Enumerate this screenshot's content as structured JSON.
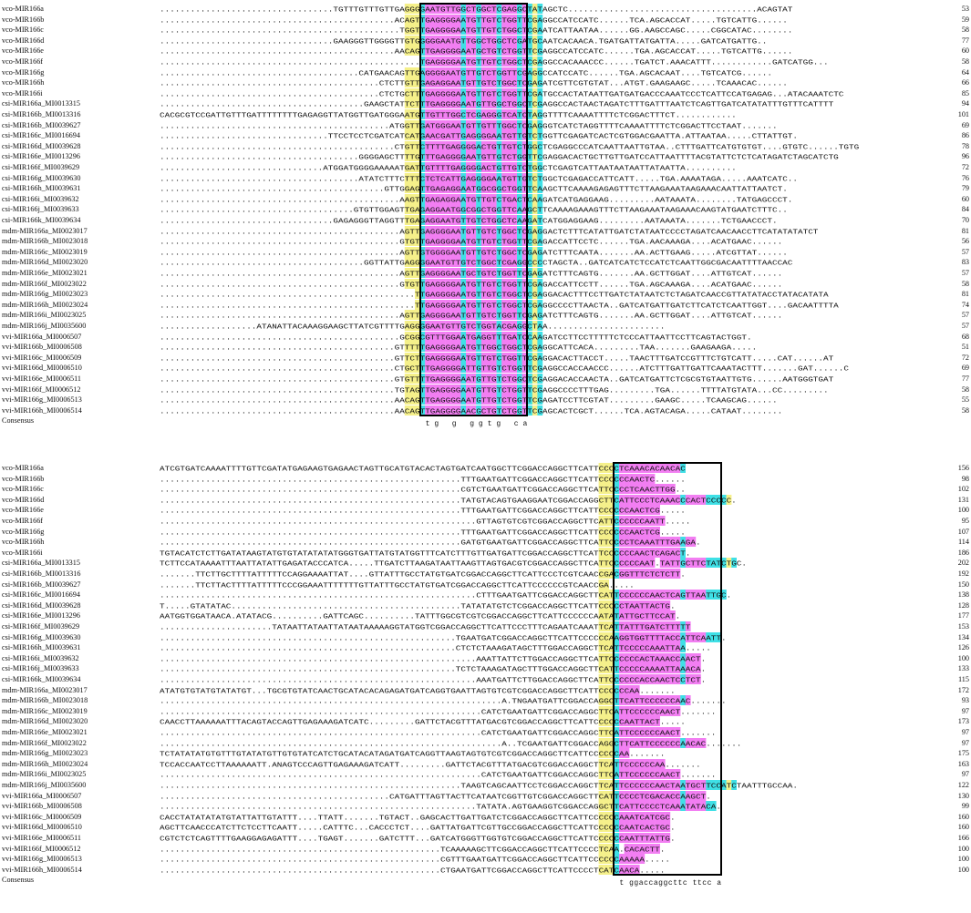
{
  "block1": {
    "rows": [
      {
        "name": "vco-MIR166a",
        "seq": "..................................TGTTTGTTTGTTGAGGGGAATGTTGGCTGGCTCGAGGCTATAGCTC.....................................ACAGTAT",
        "num": "53"
      },
      {
        "name": "vco-MIR166b",
        "seq": "..............................................ACAGTTGAGGGGAATGTTGTCTGGTTCGAGGCCATCCATC......TCA.AGCACCAT.....TGTCATTG......",
        "num": "59"
      },
      {
        "name": "vco-MIR166c",
        "seq": "...............................................TGGTTGAGGGGAATGTTGTCTGGCTCGAATCATTAATAA......GG.AAGCCAGC.....CGGCATAC........",
        "num": "58"
      },
      {
        "name": "vco-MIR166d",
        "seq": "..................................GAAGGGTTGGGGTTGTGGGGGAATGTTGGCTGGCTCGATGCAATCACAACA.TGATGATTATGATTA.....GATCATGATTG..",
        "num": "77"
      },
      {
        "name": "vco-MIR166e",
        "seq": "..............................................AACAGTTGAGGGGAATGCTGTCTGGTTCGAGGCCATCCATC......TGA.AGCACCAT.....TGTCATTG......",
        "num": "60"
      },
      {
        "name": "vco-MIR166f",
        "seq": "...................................................TGAGGGGAATGTTGTCTGGCTCGAGGCCACAAACCC......TGATCT.AAACATTT............GATCATGG...",
        "num": "58"
      },
      {
        "name": "vco-MIR166g",
        "seq": ".......................................CATGAACAGTTGAGGGGAATGTTGTCTGGTTCGAGGCCATCCATC......TGA.AGCACAAT....TGTCATCG......",
        "num": "64"
      },
      {
        "name": "vco-MIR166h",
        "seq": "...........................................CTCTTGTTGAGAGGAATGTTGTCTGGCTCGAGATCGTTCGTGTAT...ATGT.GAAGAAGC.....TCAAACAC......",
        "num": "66"
      },
      {
        "name": "vco-MIR166i",
        "seq": "...........................................CTCTGCTTTGAGGGGAATGTTGTCTGGTTCGATGCCACTATAATTGATGATGACCCAAATCCCTCATTCCATGAGAG...ATACAAATCTC",
        "num": "85"
      },
      {
        "name": "csi-MIR166a_MI0013315",
        "seq": "........................................GAAGCTATTCTTTGAGGGGAATGTTGGCTGGCTCGAGGCCACTAACTAGATCTTTGATTTAATCTCAGTTGATCATATATTTGTTTCATTTT",
        "num": "94"
      },
      {
        "name": "csi-MIR166b_MI0013316",
        "seq": "CACGCGTCCGATTGTTTGATTTTTTTTGAGAGGTTATGGTTGATGGGAATGTTGTTTGGCTCGAGGGTCATCTAGGTTTTCAAAATTTTCTCGGACTTTCT............",
        "num": "101"
      },
      {
        "name": "csi-MIR166b_MI0039627",
        "seq": ".............................................ATGGTTGATGGGAATGTTGTTTGGCTCGAGGGTCATCTAGGTTTTCAAAATTTTCTCGGACTTCCTAAT.......",
        "num": "69"
      },
      {
        "name": "csi-MIR166c_MI0016694",
        "seq": ".................................TTCCTCCTCGATCATCATGAACGATTGAGGGGAATGTTGTCTGGTTCGAGATCACTCGTGGACGAATTA.ATTAATAA.....CTTATTGT.",
        "num": "86"
      },
      {
        "name": "csi-MIR166d_MI0039628",
        "seq": "..............................................CTGTTCTTTTGAGGGGACTGTTGTCTGGCTCGAGGCCCATCAATTAATTGTAA..CTTTGATTCATGTGTGT....GTGTC......TGTG",
        "num": "78"
      },
      {
        "name": "csi-MIR166e_MI0013296",
        "seq": ".......................................GGGGAGCTTTTGTTTGAGGGGAATGTTGTCTGGTTCGAGGACACTGCTTGTTGATCCATTAATTTTACGTATTCTCTCATAGATCTAGCATCTG",
        "num": "96"
      },
      {
        "name": "csi-MIR166f_MI0039629",
        "seq": "................................ATGGATGGGGAAAAATGATTGTTTTGAGGGGACTGTTGTCTGGCTCGAGTCATTAATAATAATTATAATTA..........",
        "num": "72"
      },
      {
        "name": "csi-MIR166g_MI0039630",
        "seq": ".......................................ATATCTTTCTTTCTCTCATTGAGGGGAATGTTGTCTGGCTCGAGACCATTCATT.....TGA.AAAATAGA.....AAATCATC..",
        "num": "76"
      },
      {
        "name": "csi-MIR166h_MI0039631",
        "seq": "............................................GTTGGAGTTGAGAGGAATGGCGGCTGGTTCAAGCTTCAAAAGAGAGTTTCTTAAGAAATAAGAAACAATTATTAATCT.",
        "num": "79"
      },
      {
        "name": "csi-MIR166i_MI0039632",
        "seq": "...............................................AAGTTGAGAGGAATGTTGTCTGACTCAAGATCATGAGGAAG.........AATAAATA........TATGAGCCCT.",
        "num": "60"
      },
      {
        "name": "csi-MIR166j_MI0039633",
        "seq": "......................................GTGTTGGAGTTGAGAGGAATGGCGGCTGGTTCAAGCTTCAAAAGAAAGTTTCTTAAGAAATAAGAAACAAGTATGAATCTTTC..",
        "num": "84"
      },
      {
        "name": "csi-MIR166k_MI0039634",
        "seq": "..................................GAGAGGGTTAGGTTTGAGAGGAATGTTGTCTGGCTCAAGATCATGGAGGAAG.........AATAAATA.......TCTGAACCCT.",
        "num": "70"
      },
      {
        "name": "mdm-MIR166a_MI0023017",
        "seq": "...............................................AGTTGAGGGGAATGTTGTCTGGCTCGAGGACTCTTTCATATTGATCTATAATCCCCTAGATCAACAACCTTCATATATATCT",
        "num": "81"
      },
      {
        "name": "mdm-MIR166b_MI0023018",
        "seq": "...............................................GTGTTGAGGGGAATGTTGTCTGGTTCGAGACCATTCCTC......TGA.AACAAAGA....ACATGAAC......",
        "num": "56"
      },
      {
        "name": "mdm-MIR166c_MI0023019",
        "seq": "...............................................AGTTGTGGGGAATGTTGTCTGGCTCGAGATCTTTCAATA.......AA.ACTTGAAG.....ATCGTTAT......",
        "num": "57"
      },
      {
        "name": "mdm-MIR166d_MI0023020",
        "seq": "........................................GGTTATTGAGGGGAATGTTGTCTGGCTCGAGGCCCCTAGCTA..GATCATCATCTCCATCTCAATTGGCGACAATTTTAACCAC",
        "num": "83"
      },
      {
        "name": "mdm-MIR166e_MI0023021",
        "seq": "...............................................AGTTGAGGGGAATGCTGTCTGGTTCGAGATCTTTCAGTG.......AA.GCTTGGAT....ATTGTCAT......",
        "num": "57"
      },
      {
        "name": "mdm-MIR166f_MI0023022",
        "seq": "...............................................GTGTTGAGGGGAATGTTGTCTGGTTCGAGACCATTCCTT......TGA.AGCAAAGA....ACATGAAC......",
        "num": "58"
      },
      {
        "name": "mdm-MIR166g_MI0023023",
        "seq": "..................................................TTGAGGGGAATGTTGTCTGGCTCGAGGACACTTTCCTTGATCTATAATCTCTAGATCAACCGTTATATACCTATACATATA",
        "num": "81"
      },
      {
        "name": "mdm-MIR166h_MI0023024",
        "seq": "..................................................TTGAGGGGAATGTTGTCTGGCTCGAGGCCCCTTAACTA..GATCATGATTGATCTTCATCTCAATTGGT....GACAATTTTA",
        "num": "74"
      },
      {
        "name": "mdm-MIR166i_MI0023025",
        "seq": "...............................................AGTTGAGGGGAATGTTGTCTGGTTCGAGATCTTTCAGTG.......AA.GCTTGGAT....ATTGTCAT......",
        "num": "57"
      },
      {
        "name": "mdm-MIR166j_MI0035600",
        "seq": "...................ATANATTACAAAGGAAGCTTATCGTTTTGAGGGGAATGTTGTCTGGTACGAGGCTAA.......................",
        "num": "57"
      },
      {
        "name": "vvi-MIR166a_MI0006507",
        "seq": "...............................................GCGGCGTTTGGAATGAGGTTTGATCCAAGATCCTTCCTTTTTCTCCCATTAATTCCTTCAGTACTGGT.",
        "num": "68"
      },
      {
        "name": "vvi-MIR166b_MI0006508",
        "seq": "..............................................GTTTTTGAGGGGAATGTTGGCTGGCTCGAGGCATTCACA.........TAA.......GAAGAAGA.....",
        "num": "51"
      },
      {
        "name": "vvi-MIR166c_MI0006509",
        "seq": "..............................................GTTCTTGAGGGGAATGTTGTCTGGTTCGAGGACACTTACCT.....TAACTTTGATCCGTTTCTGTCATT.....CAT......AT",
        "num": "72"
      },
      {
        "name": "vvi-MIR166d_MI0006510",
        "seq": "..............................................CTGCTTTGAGGGGATTGTTGTCTGGTTCGAGGCCACCAACCC......ATCTTTGATTGATTCAAATACTTT.......GAT......C",
        "num": "69"
      },
      {
        "name": "vvi-MIR166e_MI0006511",
        "seq": "..............................................GTGTTTTGAGGGGAATGTTGTCTGGCTCGAGGACACCAACTA..GATCATGATTCTCGCGTGTAATTGTG......AATGGGTGAT",
        "num": "77"
      },
      {
        "name": "vvi-MIR166f_MI0006512",
        "seq": "..............................................TGTAGTTGAGGGGAATGTTGTCTGGTTCGAGGCCCCTTTGAG.........TGA......TTTTATGTATA...CC.........",
        "num": "58"
      },
      {
        "name": "vvi-MIR166g_MI0006513",
        "seq": "..............................................AACAGTTGAGGGGAATGTTGTCTGGTTCGAGATCCTTCGTAT.........GAAGC.....TCAAGCAG......",
        "num": "55"
      },
      {
        "name": "vvi-MIR166h_MI0006514",
        "seq": "..............................................AACAGTTGAGGGGAACGCTGTCTGGTTCGAGCACTCGCT......TCA.AGTACAGA.....CATAAT........",
        "num": "58"
      }
    ],
    "consensus_label": "Consensus",
    "consensus": "tg  g   ggtg  ca"
  },
  "block2": {
    "rows": [
      {
        "name": "vco-MIR166a",
        "seq": "ATCGTGATCAAAATTTTGTTCGATATGAGAAGTGAGAACTAGTTGCATGTACACTAGTGATCAATGGCTTCGGACCAGGCTTCATTCCCCTCAAACACAACAC",
        "num": "156"
      },
      {
        "name": "vco-MIR166b",
        "seq": "...........................................................TTTGAATGATTCGGACCAGGCTTCATTCCCCCCAACTC......",
        "num": "98"
      },
      {
        "name": "vco-MIR166c",
        "seq": "...........................................................CGTCTGAATGATTCGGACCAGGCTTCATTCCCCTCAACTTGG..",
        "num": "102"
      },
      {
        "name": "vco-MIR166d",
        "seq": "...........................................................TATGTACAGTGAAGGAATCGGACCAGGCTTCATTCCCTCAAACCCACTCCCCC.",
        "num": "131"
      },
      {
        "name": "vco-MIR166e",
        "seq": "...........................................................TTTGAATGATTCGGACCAGGCTTCATTCCCCCCAACTCG.....",
        "num": "100"
      },
      {
        "name": "vco-MIR166f",
        "seq": "..............................................................GTTAGTGTCGTCGGACCAGGCTTCATTCCCCCCAATT.....",
        "num": "95"
      },
      {
        "name": "vco-MIR166g",
        "seq": "...........................................................TTTGAATGATTCGGACCAGGCTTCATTCCCCCCAACTCG.....",
        "num": "107"
      },
      {
        "name": "vco-MIR166h",
        "seq": "...........................................................GATGTGAATGATTCGGACCAGGCTTCATTCCCCTCAAATTTGAAGA.",
        "num": "114"
      },
      {
        "name": "vco-MIR166i",
        "seq": "TGTACATCTCTTGATATAAGTATGTGTATATATATGGGTGATTATGTATGGTTTCATCTTTGTTGATGATTCGGACCAGGCTTCATTCCCCCCAACTCAGACT.",
        "num": "186"
      },
      {
        "name": "csi-MIR166a_MI0013315",
        "seq": "TCTTCCATAAAATTTAATTATATTGAGATACCCATCA.....TTGATCTTAAGATAATTAAGTTAGTGACGTCGGACCAGGCTTCATTCCCCCCAAT.TATTGCTTCTATCTGC.",
        "num": "202"
      },
      {
        "name": "csi-MIR166b_MI0013316",
        "seq": ".......TTCTTGCTTTTATTTTTCCAGGAAAATTAT....GTTATTTGCCTATGTGATCGGACCAGGCTTCATTCCCTCGTCAACCGACGGTTTCTCTCTT.",
        "num": "192"
      },
      {
        "name": "csi-MIR166b_MI0039627",
        "seq": ".......TTCTTACTTTTATTTTTCCCGGAAATTTTTTTGTTATTTGCCTATGTGATCGGACCAGGCTTCATTCCCCCCGTCAACCGA.....",
        "num": "150"
      },
      {
        "name": "csi-MIR166c_MI0016694",
        "seq": "..............................................................CTTTGAATGATTCGGACCAGGCTTCATTCCCCCCAACTCAGTTAATTGC.",
        "num": "138"
      },
      {
        "name": "csi-MIR166d_MI0039628",
        "seq": "T.....GTATATAC.............................................TATATATGTCTCGGACCAGGCTTCATTCCCCCTAATTACTG.",
        "num": "128"
      },
      {
        "name": "csi-MIR166e_MI0013296",
        "seq": "AATGGTGGATAACA.ATATACG..........GATTCAGC..........TATTTGGCGTCGTCGGACCAGGCTTCATTCCCCCCAATATATTGCTTCCAT.",
        "num": "177"
      },
      {
        "name": "csi-MIR166f_MI0039629",
        "seq": "......................TATAATTATAATTATAATAAAAAGGTATGGTCGGACCAGGCTTCATTCCCTTTCAGAATCAAATTCATTATTTGATCTTTTT",
        "num": "153"
      },
      {
        "name": "csi-MIR166g_MI0039630",
        "seq": "..........................................................TGAATGATCGGACCAGGCTTCATTCCCCCCAAGGTGGTTTTACCATTCAATT.",
        "num": "134"
      },
      {
        "name": "csi-MIR166h_MI0039631",
        "seq": "..........................................................CTCTCTAAAGATAGCTTTGGACCAGGCTTCATTCCCCCAAATTAA.....",
        "num": "126"
      },
      {
        "name": "csi-MIR166i_MI0039632",
        "seq": "..............................................................AAATTATTCTTGGACCAGGCTTCATTCCCCCCACTAAACCAACT.",
        "num": "100"
      },
      {
        "name": "csi-MIR166j_MI0039633",
        "seq": "..........................................................TCTCTAAAGATAGCTTTGGACCAGGCTTCATTCCCCCAAAATTAAACA.",
        "num": "133"
      },
      {
        "name": "csi-MIR166k_MI0039634",
        "seq": "..............................................................AAATGATTCTTGGACCAGGCTTCATTCCCCCCACCAACTCCTCT.",
        "num": "115"
      },
      {
        "name": "mdm-MIR166a_MI0023017",
        "seq": "ATATGTGTATGTATATGT...TGCGTGTATCAACTGCATACACAGAGATGATCAGGTGAATTAGTGTCGTCGGACCAGGCTTCATTCCCCCCAA.......",
        "num": "172"
      },
      {
        "name": "mdm-MIR166b_MI0023018",
        "seq": "...................................................................A.TNGAATGATTCGGACCAGGCTTCATTCCCCCCAAC.......",
        "num": "93"
      },
      {
        "name": "mdm-MIR166c_MI0023019",
        "seq": "...............................................................CATCTGAATGATTCGGACCAGGCTTCATTCCCCCCAACT.......",
        "num": "97"
      },
      {
        "name": "mdm-MIR166d_MI0023020",
        "seq": "CAACCTTAAAAAATTTACAGTACCAGTTGAGAAAGATCATC.........GATTCTACGTTTATGACGTCGGACCAGGCTTCATTCCCCCCAATTACT.....",
        "num": "173"
      },
      {
        "name": "mdm-MIR166e_MI0023021",
        "seq": "...............................................................CATCTGAATGATTCGGACCAGGCTTCATTCCCCCCAACT.......",
        "num": "97"
      },
      {
        "name": "mdm-MIR166f_MI0023022",
        "seq": "...................................................................A..TCGAATGATTCGGACCAGGCTTCATTCCCCCCAACAC.......",
        "num": "97"
      },
      {
        "name": "mdm-MIR166g_MI0023023",
        "seq": "TCTATATATGTGTTTGTATATGTTGTGTATCATCTGCATACATAGATGATCAGGTTAAGTAGTGTCGTCGGACCAGGCTTCATTCCCCCCAA.......",
        "num": "175"
      },
      {
        "name": "mdm-MIR166h_MI0023024",
        "seq": "TCCACCAATCCTTAAAAAATT.ANAGTCCCAGTTGAGAAAGATCATT.........GATTCTACGTTTATGACGTCGGACCAGGCTTCATTCCCCCCAA.......",
        "num": "163"
      },
      {
        "name": "mdm-MIR166i_MI0023025",
        "seq": "...............................................................CATCTGAATGATTCGGACCAGGCTTCATTCCCCCCAACT.......",
        "num": "97"
      },
      {
        "name": "mdm-MIR166j_MI0035600",
        "seq": "...........................................................TAAGTCAGCAATTCCTCGGACCAGGCTTCATTCCCCCCAACTAATGCTTCCATCTAATTTGCCAA.",
        "num": "122"
      },
      {
        "name": "vvi-MIR166a_MI0006507",
        "seq": ".............................................CATGATTTAGTTACTTCATAATCGGTTGTCGGACCAGGCTTCATTCCCCTCGACACCAAGCT.",
        "num": "130"
      },
      {
        "name": "vvi-MIR166b_MI0006508",
        "seq": "..............................................................TATATA.AGTGAAGGTCGGACCAGGCTTCATTCCCCTCAAATATACA.",
        "num": "99"
      },
      {
        "name": "vvi-MIR166c_MI0006509",
        "seq": "CACCTATATATATGTATTATTGTATTT....TTATT.......TGTACT..GAGCACTTGATTGATCTCGGACCAGGCTTCATTCCCCCCAAATCATCGC.",
        "num": "160"
      },
      {
        "name": "vvi-MIR166d_MI0006510",
        "seq": "AGCTTCAACCCATCTTCTCCTTCAATT.....CATTTC...CACCCTCT....GATTATGATTCGTTGCCGGACCAGGCTTCATTCCCCCCAATCACTGC.",
        "num": "160"
      },
      {
        "name": "vvi-MIR166e_MI0006511",
        "seq": "CGTCTCTCAGTTTTGAAGGAGAGATTT....TGAGT.......GATCTTT...GATCATGGGTTGGTGTCGGACCAGGCTTCATTCCCCCCAATTTATTG.",
        "num": "166"
      },
      {
        "name": "vvi-MIR166f_MI0006512",
        "seq": ".......................................................TCAAAAAGCTTCGGACCAGGCTTCATTCCCCTCAA.CACACTT.",
        "num": "100"
      },
      {
        "name": "vvi-MIR166g_MI0006513",
        "seq": ".......................................................CGTTTGAATGATTCGGACCAGGCTTCATTCCCCCCAAAAA.....",
        "num": "100"
      },
      {
        "name": "vvi-MIR166h_MI0006514",
        "seq": ".......................................................CTGAATGATTCGGACCAGGCTTCATTCCCCTCATCAACA.....",
        "num": "100"
      }
    ],
    "consensus_label": "Consensus",
    "consensus": "t ggaccaggcttc ttcc     a"
  },
  "colors": {
    "identical": "#f27ef2",
    "high": "#3fe0e6",
    "partial": "#f5f08a",
    "box": "#000000"
  }
}
